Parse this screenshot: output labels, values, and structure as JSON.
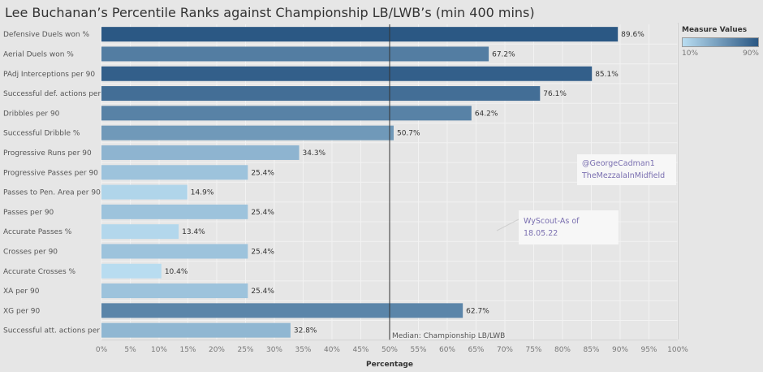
{
  "title": "Lee Buchanan’s Percentile Ranks against Championship LB/LWB’s (min 400 mins)",
  "chart_data": {
    "type": "bar",
    "orientation": "horizontal",
    "title": "Lee Buchanan’s Percentile Ranks against Championship LB/LWB’s (min 400 mins)",
    "xlabel": "Percentage",
    "ylabel": "",
    "xlim": [
      0,
      100
    ],
    "xticks": [
      "0%",
      "5%",
      "10%",
      "15%",
      "20%",
      "25%",
      "30%",
      "35%",
      "40%",
      "45%",
      "50%",
      "55%",
      "60%",
      "65%",
      "70%",
      "75%",
      "80%",
      "85%",
      "90%",
      "95%",
      "100%"
    ],
    "grid": true,
    "categories": [
      "Defensive Duels won %",
      "Aerial Duels won %",
      "PAdj Interceptions per 90",
      "Successful def. actions per 90",
      "Dribbles per 90",
      "Successful Dribble %",
      "Progressive Runs per 90",
      "Progressive Passes per 90",
      "Passes to Pen. Area per 90",
      "Passes per 90",
      "Accurate Passes %",
      "Crosses per 90",
      "Accurate Crosses %",
      "XA per 90",
      "XG per 90",
      "Successful att. actions per 90"
    ],
    "values": [
      89.6,
      67.2,
      85.1,
      76.1,
      64.2,
      50.7,
      34.3,
      25.4,
      14.9,
      25.4,
      13.4,
      25.4,
      10.4,
      25.4,
      62.7,
      32.8
    ],
    "value_labels": [
      "89.6%",
      "67.2%",
      "85.1%",
      "76.1%",
      "64.2%",
      "50.7%",
      "34.3%",
      "25.4%",
      "14.9%",
      "25.4%",
      "13.4%",
      "25.4%",
      "10.4%",
      "25.4%",
      "62.7%",
      "32.8%"
    ],
    "reference_line": {
      "value": 50,
      "label": "Median: Championship LB/LWB"
    },
    "color_scale": {
      "min": 10,
      "max": 90,
      "min_color": "#b9ddf1",
      "max_color": "#2a5783"
    }
  },
  "legend": {
    "title": "Measure Values",
    "min_label": "10%",
    "max_label": "90%",
    "placement": "top-right"
  },
  "annotations": {
    "credit_line1": "@GeorgeCadman1",
    "credit_line2": "TheMezzalaInMidfield",
    "source": "WyScout-As of 18.05.22"
  }
}
